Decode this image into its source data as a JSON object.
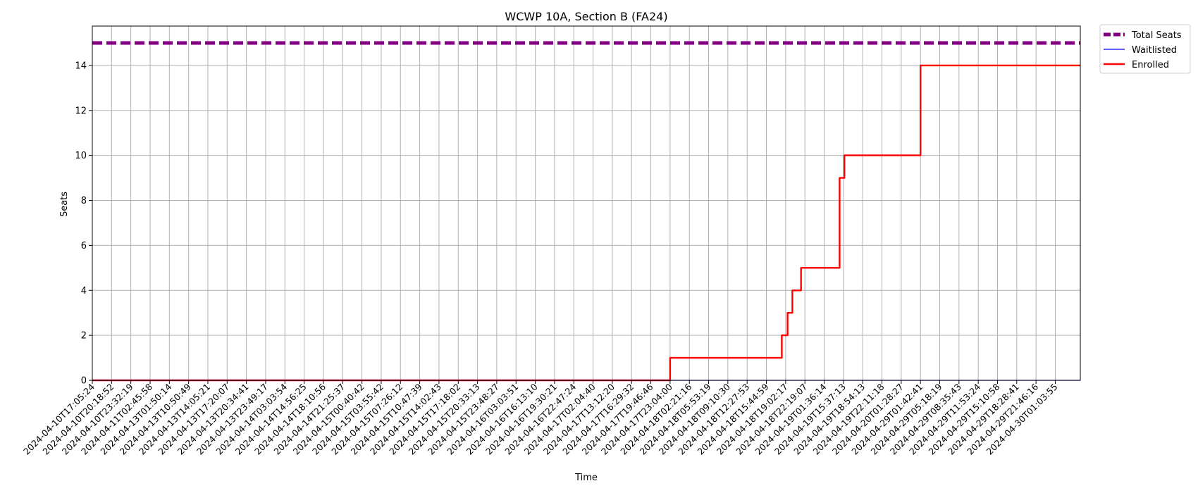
{
  "chart_data": {
    "type": "line",
    "title": "WCWP 10A, Section B (FA24)",
    "xlabel": "Time",
    "ylabel": "Seats",
    "ylim": [
      0,
      15.75
    ],
    "yticks": [
      0,
      2,
      4,
      6,
      8,
      10,
      12,
      14
    ],
    "grid": true,
    "legend_position": "outside-top-right",
    "x_ticks": [
      "2024-04-10T17:05:24",
      "2024-04-10T20:18:52",
      "2024-04-10T23:32:19",
      "2024-04-11T02:45:58",
      "2024-04-13T01:50:14",
      "2024-04-13T10:50:49",
      "2024-04-13T14:05:21",
      "2024-04-13T17:20:07",
      "2024-04-13T20:34:41",
      "2024-04-13T23:49:17",
      "2024-04-14T03:03:54",
      "2024-04-14T14:56:25",
      "2024-04-14T18:10:56",
      "2024-04-14T21:25:37",
      "2024-04-15T00:40:42",
      "2024-04-15T03:55:42",
      "2024-04-15T07:26:12",
      "2024-04-15T10:47:39",
      "2024-04-15T14:02:43",
      "2024-04-15T17:18:02",
      "2024-04-15T20:33:13",
      "2024-04-15T23:48:27",
      "2024-04-16T03:03:51",
      "2024-04-16T16:13:10",
      "2024-04-16T19:30:21",
      "2024-04-16T22:47:24",
      "2024-04-17T02:04:40",
      "2024-04-17T13:12:20",
      "2024-04-17T16:29:32",
      "2024-04-17T19:46:46",
      "2024-04-17T23:04:00",
      "2024-04-18T02:21:16",
      "2024-04-18T05:53:19",
      "2024-04-18T09:10:30",
      "2024-04-18T12:27:53",
      "2024-04-18T15:44:59",
      "2024-04-18T19:02:17",
      "2024-04-18T22:19:07",
      "2024-04-19T01:36:14",
      "2024-04-19T15:37:13",
      "2024-04-19T18:54:13",
      "2024-04-19T22:11:18",
      "2024-04-20T01:28:27",
      "2024-04-29T01:42:41",
      "2024-04-29T05:18:19",
      "2024-04-29T08:35:43",
      "2024-04-29T11:53:24",
      "2024-04-29T15:10:58",
      "2024-04-29T18:28:41",
      "2024-04-29T21:46:16",
      "2024-04-30T01:03:55"
    ],
    "x_range": [
      0,
      51.3
    ],
    "series": [
      {
        "name": "Total Seats",
        "color": "#800080",
        "style": "dashed-thick",
        "points": [
          [
            0,
            15
          ],
          [
            51.3,
            15
          ]
        ]
      },
      {
        "name": "Waitlisted",
        "color": "#0000ff",
        "style": "solid-thin",
        "points": [
          [
            0,
            0
          ],
          [
            51.3,
            0
          ]
        ]
      },
      {
        "name": "Enrolled",
        "color": "#ff0000",
        "style": "solid",
        "step": true,
        "points": [
          [
            0,
            0
          ],
          [
            30.0,
            1
          ],
          [
            35.8,
            2
          ],
          [
            36.1,
            3
          ],
          [
            36.35,
            4
          ],
          [
            36.8,
            5
          ],
          [
            38.8,
            9
          ],
          [
            39.05,
            10
          ],
          [
            43.0,
            14
          ],
          [
            51.3,
            14
          ]
        ]
      }
    ]
  }
}
